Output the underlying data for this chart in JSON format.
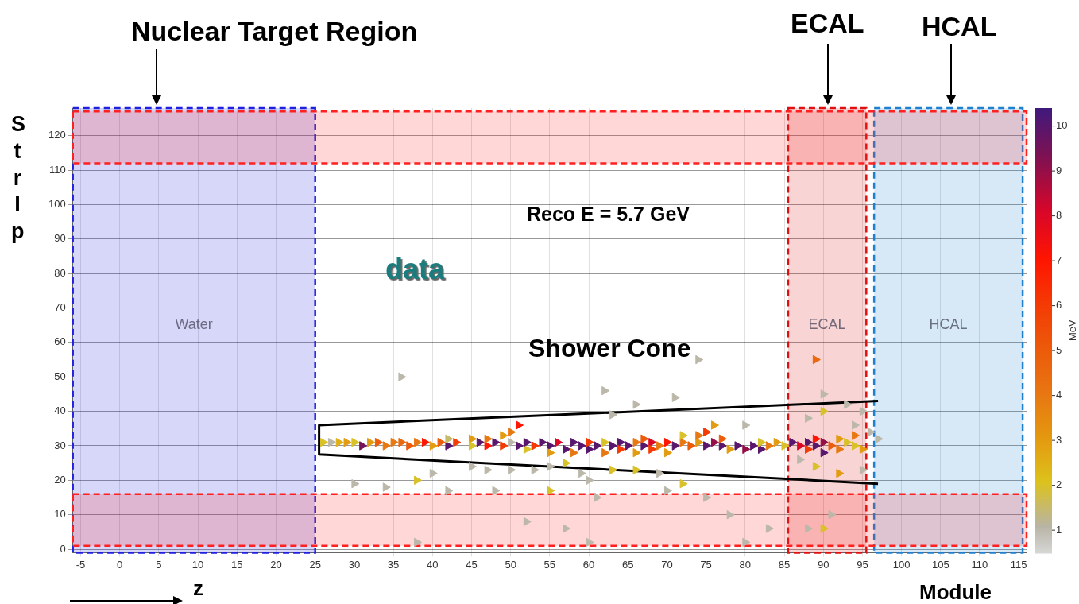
{
  "chart_data": {
    "type": "scatter",
    "xlabel": "Module",
    "ylabel": "StrIp",
    "clabel": "MeV",
    "annotations": [
      "Nuclear Target Region",
      "ECAL",
      "HCAL",
      "Reco E = 5.7 GeV",
      "data",
      "Shower Cone",
      "z"
    ],
    "xlim": [
      -6,
      116
    ],
    "xticks": [
      -5,
      0,
      5,
      10,
      15,
      20,
      25,
      30,
      35,
      40,
      45,
      50,
      55,
      60,
      65,
      70,
      75,
      80,
      85,
      90,
      95,
      100,
      105,
      110,
      115
    ],
    "ylim": [
      -1,
      128
    ],
    "yticks": [
      0,
      10,
      20,
      30,
      40,
      50,
      60,
      70,
      80,
      90,
      100,
      110,
      120
    ],
    "clim": [
      0.5,
      10.4
    ],
    "cticks": [
      1,
      2,
      3,
      4,
      5,
      6,
      7,
      8,
      9,
      10
    ],
    "grid": true,
    "legend": false,
    "marker": "triangle",
    "bands": [
      {
        "axis": "x",
        "from": -6,
        "to": 25,
        "label": "Water",
        "color": "#2020e0"
      },
      {
        "axis": "x",
        "from": 85.5,
        "to": 95.5,
        "label": "ECAL",
        "color": "#e01010"
      },
      {
        "axis": "x",
        "from": 96.5,
        "to": 115.5,
        "label": "HCAL",
        "color": "#2080d0"
      },
      {
        "axis": "y",
        "from": 112,
        "to": 127,
        "label": null,
        "color": "#ff2020"
      },
      {
        "axis": "y",
        "from": 1,
        "to": 16,
        "label": null,
        "color": "#ff2020"
      }
    ],
    "series": [
      {
        "type": "scatter",
        "x": [
          26,
          27,
          28,
          29,
          30,
          31,
          32,
          33,
          34,
          35,
          36,
          37,
          38,
          39,
          40,
          41,
          42,
          42,
          43,
          45,
          45,
          46,
          47,
          47,
          48,
          49,
          49,
          50,
          50,
          51,
          51,
          52,
          52,
          53,
          54,
          55,
          55,
          56,
          57,
          58,
          58,
          59,
          60,
          60,
          61,
          62,
          62,
          63,
          64,
          64,
          65,
          66,
          66,
          67,
          67,
          68,
          68,
          69,
          70,
          70,
          71,
          72,
          72,
          73,
          74,
          74,
          75,
          75,
          76,
          76,
          77,
          77,
          78,
          79,
          80,
          81,
          82,
          83,
          84,
          85,
          86,
          87,
          88,
          88,
          89,
          89,
          90,
          90,
          91,
          92,
          92,
          93,
          94,
          94,
          95,
          74,
          62,
          71,
          66,
          63,
          36,
          34,
          30,
          38,
          40,
          42,
          45,
          47,
          50,
          53,
          55,
          57,
          59,
          60,
          63,
          66,
          69,
          72,
          48,
          55,
          61,
          70,
          75,
          52,
          57,
          78,
          83,
          88,
          90,
          80,
          38,
          60,
          89,
          90,
          88,
          93,
          94,
          95,
          87,
          89,
          92,
          95,
          91,
          96,
          97,
          80,
          82,
          90
        ],
        "values": [
          31,
          31,
          31,
          31,
          31,
          30,
          31,
          31,
          30,
          31,
          31,
          30,
          31,
          31,
          30,
          31,
          30,
          32,
          31,
          32,
          30,
          31,
          30,
          32,
          31,
          30,
          33,
          31,
          34,
          36,
          30,
          29,
          31,
          30,
          31,
          30,
          28,
          31,
          29,
          31,
          28,
          30,
          29,
          31,
          30,
          31,
          28,
          30,
          31,
          29,
          30,
          31,
          28,
          30,
          32,
          31,
          29,
          30,
          31,
          28,
          30,
          31,
          33,
          30,
          31,
          33,
          30,
          34,
          31,
          36,
          30,
          32,
          29,
          30,
          29,
          30,
          29,
          30,
          31,
          30,
          31,
          30,
          31,
          29,
          30,
          32,
          31,
          28,
          30,
          32,
          29,
          31,
          33,
          30,
          29,
          55,
          46,
          44,
          42,
          39,
          50,
          18,
          19,
          20,
          22,
          17,
          24,
          23,
          23,
          23,
          24,
          25,
          22,
          20,
          23,
          23,
          22,
          19,
          17,
          17,
          15,
          17,
          15,
          8,
          6,
          10,
          6,
          6,
          6,
          2,
          2,
          2,
          55,
          45,
          38,
          42,
          36,
          40,
          26,
          24,
          22,
          23,
          10,
          34,
          32,
          36,
          31,
          40
        ],
        "colors": [
          "#d9c128",
          "#bbb8a9",
          "#dfb017",
          "#e39b10",
          "#d9c128",
          "#751259",
          "#e39b10",
          "#ec5c0a",
          "#e87812",
          "#e87812",
          "#e96a0e",
          "#ec5c0a",
          "#e87812",
          "#ff1600",
          "#e39b10",
          "#ec5c0a",
          "#58166c",
          "#c7ba6c",
          "#f43b04",
          "#e39b10",
          "#d9c128",
          "#58166c",
          "#ff1600",
          "#e87812",
          "#58166c",
          "#f43b04",
          "#e39b10",
          "#bbb8a9",
          "#e87812",
          "#ff1600",
          "#58166c",
          "#d9c128",
          "#58166c",
          "#f43b04",
          "#58166c",
          "#58166c",
          "#e39b10",
          "#dc0825",
          "#58166c",
          "#58166c",
          "#e87812",
          "#58166c",
          "#58166c",
          "#f43b04",
          "#58166c",
          "#d9c128",
          "#e87812",
          "#58166c",
          "#58166c",
          "#f43b04",
          "#58166c",
          "#e87812",
          "#e39b10",
          "#58166c",
          "#ec5c0a",
          "#dc0825",
          "#f43b04",
          "#e87812",
          "#ff1600",
          "#e39b10",
          "#58166c",
          "#e87812",
          "#d9c128",
          "#ec5c0a",
          "#e39b10",
          "#e87812",
          "#58166c",
          "#f43b04",
          "#960e47",
          "#e39b10",
          "#58166c",
          "#ec5c0a",
          "#e39b10",
          "#58166c",
          "#960e47",
          "#58166c",
          "#58166c",
          "#e87812",
          "#e39b10",
          "#d9c128",
          "#58166c",
          "#dc0825",
          "#58166c",
          "#f43b04",
          "#58166c",
          "#ff1600",
          "#960e47",
          "#58166c",
          "#ec5c0a",
          "#e39b10",
          "#e87812",
          "#d9c128",
          "#e87812",
          "#d9c128",
          "#e39b10",
          "#bbb8a9",
          "#bbb8a9",
          "#bbb8a9",
          "#bbb8a9",
          "#bbb8a9",
          "#bbb8a9",
          "#bbb8a9",
          "#bbb8a9",
          "#d9c128",
          "#bbb8a9",
          "#bbb8a9",
          "#bbb8a9",
          "#bbb8a9",
          "#bbb8a9",
          "#bbb8a9",
          "#bbb8a9",
          "#d9c128",
          "#bbb8a9",
          "#bbb8a9",
          "#d9c128",
          "#d9c128",
          "#bbb8a9",
          "#d9c128",
          "#bbb8a9",
          "#d9c128",
          "#bbb8a9",
          "#bbb8a9",
          "#bbb8a9",
          "#bbb8a9",
          "#bbb8a9",
          "#bbb8a9",
          "#bbb8a9",
          "#bbb8a9",
          "#d9c128",
          "#bbb8a9",
          "#bbb8a9",
          "#bbb8a9",
          "#e96a0e",
          "#bbb8a9",
          "#bbb8a9",
          "#bbb8a9",
          "#bbb8a9",
          "#bbb8a9",
          "#bbb8a9",
          "#d9c128",
          "#e39b10",
          "#bbb8a9",
          "#bbb8a9",
          "#bbb8a9",
          "#bbb8a9",
          "#bbb8a9",
          "#d9c128",
          "#d9c128"
        ],
        "cvalues": [
          2,
          1,
          2.5,
          3,
          2,
          9.5,
          3,
          5,
          4,
          4,
          4.5,
          5,
          4,
          7,
          3,
          5,
          10,
          1.5,
          6,
          3,
          2,
          10,
          7,
          4,
          10,
          6,
          3,
          1,
          4,
          7,
          10,
          2,
          10,
          6,
          10,
          10,
          3,
          8,
          10,
          10,
          4,
          10,
          10,
          6,
          10,
          2,
          4,
          10,
          10,
          6,
          10,
          4,
          3,
          10,
          5,
          8,
          6,
          4,
          7,
          3,
          10,
          4,
          2,
          5,
          3,
          4,
          10,
          6,
          9,
          3,
          10,
          5,
          3,
          10,
          9,
          10,
          10,
          4,
          3,
          2,
          10,
          8,
          10,
          6,
          10,
          7,
          9,
          10,
          5,
          3,
          4,
          2,
          4,
          2,
          3,
          1,
          1,
          1,
          1,
          1,
          1,
          1,
          1,
          2,
          1,
          1,
          1,
          1,
          1,
          1,
          1,
          2,
          1,
          1,
          2,
          2,
          1,
          2,
          1,
          2,
          1,
          1,
          1,
          1,
          1,
          1,
          1,
          1,
          2,
          1,
          1,
          1,
          4.5,
          1,
          1,
          1,
          1,
          1,
          1,
          2,
          3,
          1,
          1,
          1,
          1,
          1,
          2,
          2
        ]
      },
      {
        "type": "line",
        "color": "#000000",
        "marker": "none",
        "x": [
          97,
          25.5,
          25.5,
          97
        ],
        "values": [
          43,
          36,
          27.5,
          19
        ]
      }
    ]
  }
}
